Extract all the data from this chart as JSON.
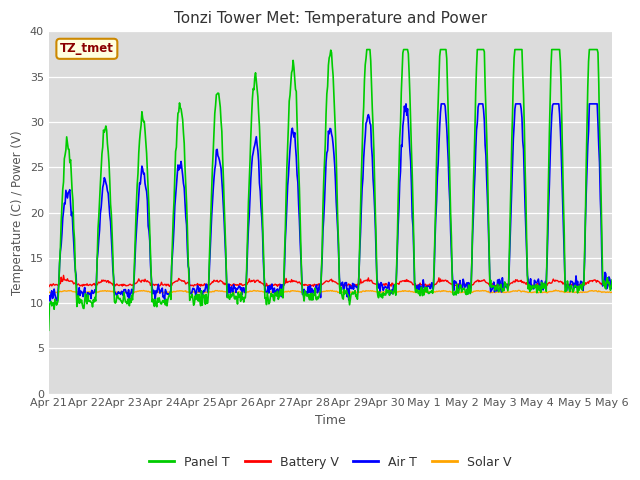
{
  "title": "Tonzi Tower Met: Temperature and Power",
  "xlabel": "Time",
  "ylabel": "Temperature (C) / Power (V)",
  "ylim": [
    0,
    40
  ],
  "yticks": [
    0,
    5,
    10,
    15,
    20,
    25,
    30,
    35,
    40
  ],
  "fig_bg": "#ffffff",
  "plot_bg": "#dcdcdc",
  "legend_label": "TZ_tmet",
  "series": {
    "panel_t": {
      "color": "#00cc00",
      "label": "Panel T"
    },
    "battery_v": {
      "color": "#ff0000",
      "label": "Battery V"
    },
    "air_t": {
      "color": "#0000ff",
      "label": "Air T"
    },
    "solar_v": {
      "color": "#ffa500",
      "label": "Solar V"
    }
  },
  "x_tick_labels": [
    "Apr 21",
    "Apr 22",
    "Apr 23",
    "Apr 24",
    "Apr 25",
    "Apr 26",
    "Apr 27",
    "Apr 28",
    "Apr 29",
    "Apr 30",
    "May 1",
    "May 2",
    "May 3",
    "May 4",
    "May 5",
    "May 6"
  ],
  "num_days": 15,
  "points_per_day": 48
}
